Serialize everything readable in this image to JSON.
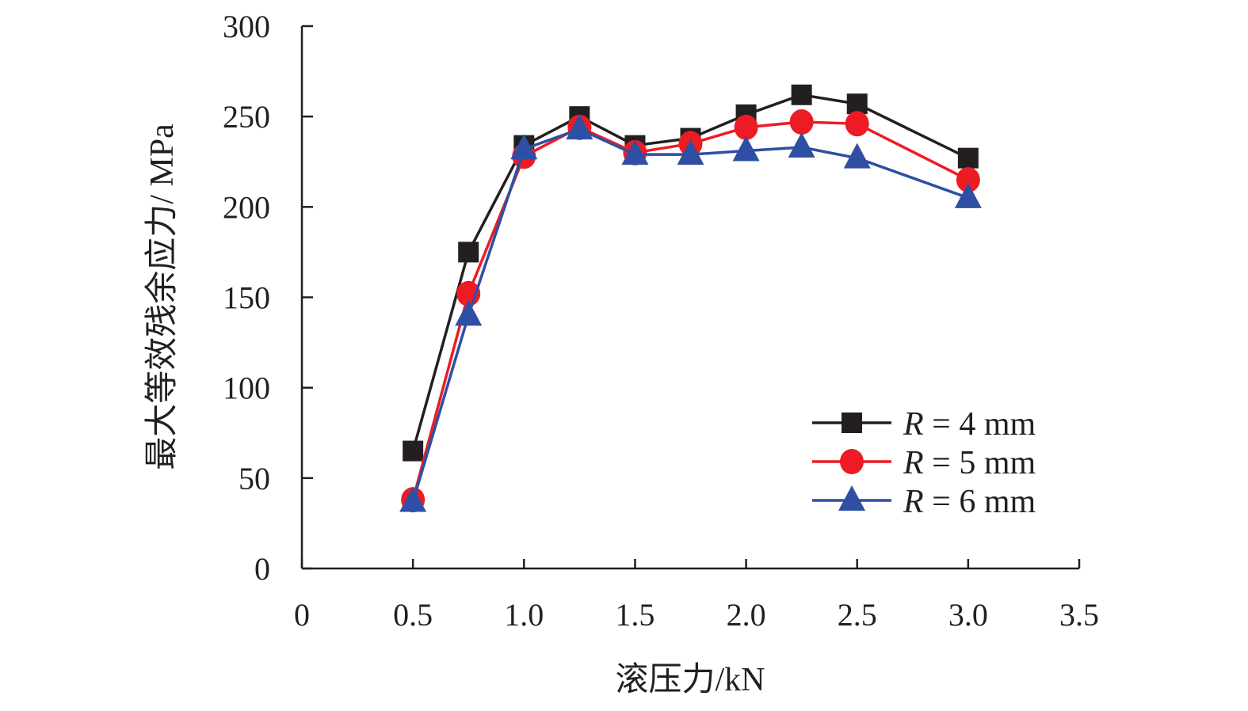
{
  "chart_data": {
    "type": "line",
    "xlabel": "滚压力/kN",
    "ylabel": "最大等效残余应力/ MPa",
    "xlim": [
      0,
      3.5
    ],
    "ylim": [
      0,
      300
    ],
    "xticks": [
      "0",
      "0.5",
      "1.0",
      "1.5",
      "2.0",
      "2.5",
      "3.0",
      "3.5"
    ],
    "yticks": [
      "0",
      "50",
      "100",
      "150",
      "200",
      "250",
      "300"
    ],
    "grid": false,
    "legend_position": "bottom-right",
    "x": [
      0.5,
      0.75,
      1.0,
      1.25,
      1.5,
      1.75,
      2.0,
      2.25,
      2.5,
      3.0
    ],
    "series": [
      {
        "name_var": "R",
        "name_rest": " = 4 mm",
        "marker": "square",
        "color": "#231f20",
        "values": [
          65,
          175,
          234,
          250,
          234,
          238,
          251,
          262,
          257,
          227
        ]
      },
      {
        "name_var": "R",
        "name_rest": " = 5 mm",
        "marker": "circle",
        "color": "#ed1c24",
        "values": [
          38,
          152,
          228,
          244,
          230,
          235,
          244,
          247,
          246,
          215
        ]
      },
      {
        "name_var": "R",
        "name_rest": " = 6 mm",
        "marker": "triangle",
        "color": "#2e4fa3",
        "values": [
          37,
          140,
          232,
          243,
          229,
          229,
          231,
          233,
          227,
          205
        ]
      }
    ]
  }
}
